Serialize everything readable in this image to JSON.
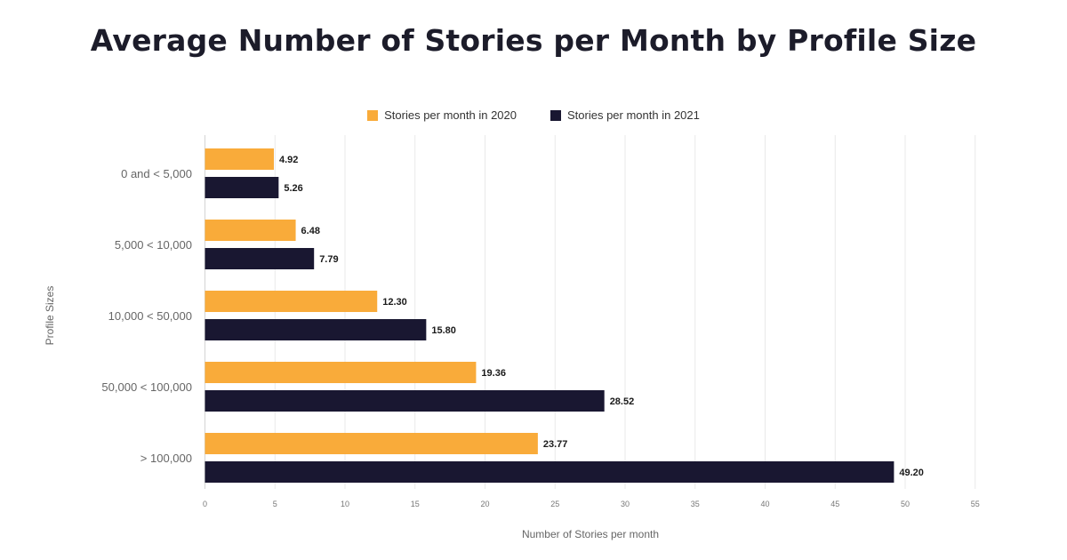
{
  "chart_data": {
    "type": "bar",
    "orientation": "horizontal",
    "title": "Average Number of Stories per Month by Profile Size",
    "xlabel": "Number of Stories per month",
    "ylabel": "Profile Sizes",
    "categories": [
      "0 and < 5,000",
      "5,000 < 10,000",
      "10,000 < 50,000",
      "50,000 < 100,000",
      "> 100,000"
    ],
    "series": [
      {
        "name": "Stories per month in 2020",
        "color": "#F9AB3A",
        "values": [
          4.92,
          6.48,
          12.3,
          19.36,
          23.77
        ],
        "labels": [
          "4.92",
          "6.48",
          "12.30",
          "19.36",
          "23.77"
        ]
      },
      {
        "name": "Stories per month in 2021",
        "color": "#191731",
        "values": [
          5.26,
          7.79,
          15.8,
          28.52,
          49.2
        ],
        "labels": [
          "5.26",
          "7.79",
          "15.80",
          "28.52",
          "49.20"
        ]
      }
    ],
    "xlim": [
      0,
      55
    ],
    "xticks": [
      "0",
      "5",
      "10",
      "15",
      "20",
      "25",
      "30",
      "35",
      "40",
      "45",
      "50",
      "55"
    ],
    "grid": true,
    "legend_position": "top-center"
  }
}
